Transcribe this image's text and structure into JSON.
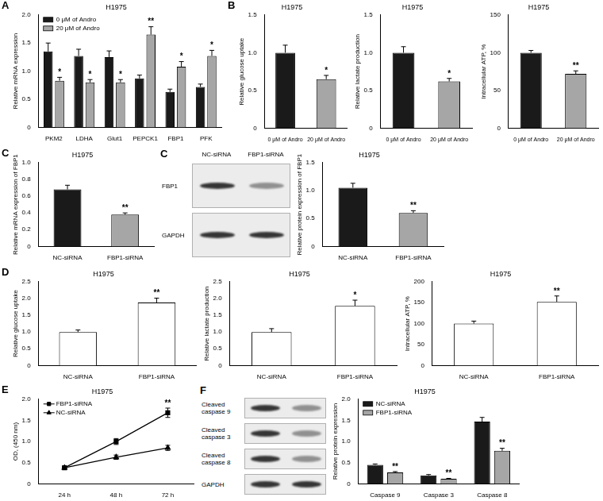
{
  "chart_data": [
    {
      "panel": "A",
      "type": "bar",
      "title": "H1975",
      "y_label": "Relative mRNA expression",
      "categories": [
        "PKM2",
        "LDHA",
        "Glut1",
        "PEPCK1",
        "FBP1",
        "PFK"
      ],
      "series": [
        {
          "name": "0 μM of Andro",
          "color": "#1a1a1a",
          "values": [
            1.35,
            1.27,
            1.25,
            0.87,
            0.63,
            0.72
          ],
          "errors": [
            0.15,
            0.12,
            0.11,
            0.06,
            0.05,
            0.05
          ]
        },
        {
          "name": "20 μM of Andro",
          "color": "#a6a6a6",
          "values": [
            0.83,
            0.8,
            0.8,
            1.65,
            1.08,
            1.27
          ],
          "errors": [
            0.06,
            0.05,
            0.05,
            0.14,
            0.09,
            0.1
          ],
          "significance": [
            "*",
            "*",
            "*",
            "**",
            "*",
            "*"
          ]
        }
      ],
      "ylim": [
        0,
        2
      ],
      "yticks": [
        0,
        0.5,
        {
          "value": 1,
          "label": "1.0"
        },
        1.5,
        {
          "value": 2,
          "label": "2.0"
        }
      ],
      "grid": false,
      "legend": "upper left"
    },
    {
      "panel": "B",
      "type": "bar",
      "title": "H1975",
      "y_label": "Relative glucose uptake",
      "categories": [
        "0 μM of Andro",
        "20 μM of Andro"
      ],
      "values": [
        1.0,
        0.65
      ],
      "errors": [
        0.1,
        0.05
      ],
      "significance": [
        null,
        "*"
      ],
      "colors": [
        "#1a1a1a",
        "#a6a6a6"
      ],
      "ylim": [
        0,
        1.5
      ],
      "yticks": [
        0,
        0.5,
        {
          "value": 1,
          "label": "1.0"
        },
        1.5
      ],
      "grid": false
    },
    {
      "type": "bar",
      "title": "H1975",
      "y_label": "Relative lactate production",
      "categories": [
        "0 μM of Andro",
        "20 μM of Andro"
      ],
      "values": [
        1.0,
        0.62
      ],
      "errors": [
        0.08,
        0.04
      ],
      "significance": [
        null,
        "*"
      ],
      "colors": [
        "#1a1a1a",
        "#a6a6a6"
      ],
      "ylim": [
        0,
        1.5
      ],
      "yticks": [
        0,
        0.5,
        {
          "value": 1,
          "label": "1.0"
        },
        1.5
      ],
      "grid": false
    },
    {
      "type": "bar",
      "title": "H1975",
      "y_label": "Intracellular ATP, %",
      "categories": [
        "0 μM of Andro",
        "20 μM of Andro"
      ],
      "values": [
        100,
        72
      ],
      "errors": [
        3,
        4
      ],
      "significance": [
        null,
        "**"
      ],
      "colors": [
        "#1a1a1a",
        "#a6a6a6"
      ],
      "ylim": [
        0,
        150
      ],
      "yticks": [
        0,
        50,
        100,
        150
      ],
      "grid": false
    },
    {
      "panel": "C",
      "type": "bar",
      "title": "H1975",
      "y_label": "Relative mRNA expression of FBP1",
      "categories": [
        "NC-siRNA",
        "FBP1-siRNA"
      ],
      "values": [
        0.68,
        0.38
      ],
      "errors": [
        0.05,
        0.02
      ],
      "significance": [
        null,
        "**"
      ],
      "colors": [
        "#1a1a1a",
        "#a6a6a6"
      ],
      "ylim": [
        0,
        1
      ],
      "yticks": [
        0,
        0.2,
        0.4,
        0.6,
        0.8,
        {
          "value": 1,
          "label": "1.0"
        }
      ],
      "grid": false
    },
    {
      "type": "bar",
      "title": "H1975",
      "y_label": "Relative protein expression of FBP1",
      "categories": [
        "NC-siRNA",
        "FBP1-siRNA"
      ],
      "values": [
        1.05,
        0.6
      ],
      "errors": [
        0.08,
        0.04
      ],
      "significance": [
        null,
        "**"
      ],
      "colors": [
        "#1a1a1a",
        "#a6a6a6"
      ],
      "ylim": [
        0,
        1.5
      ],
      "yticks": [
        0,
        0.5,
        {
          "value": 1,
          "label": "1.0"
        },
        1.5
      ],
      "grid": false
    },
    {
      "panel": "D",
      "type": "bar",
      "title": "H1975",
      "y_label": "Relative glucose uptake",
      "categories": [
        "NC-siRNA",
        "FBP1-siRNA"
      ],
      "values": [
        1.0,
        1.88
      ],
      "errors": [
        0.06,
        0.13
      ],
      "significance": [
        null,
        "**"
      ],
      "colors": [
        "#ffffff",
        "#ffffff"
      ],
      "ylim": [
        0,
        2.5
      ],
      "yticks": [
        0,
        0.5,
        {
          "value": 1,
          "label": "1.0"
        },
        1.5,
        {
          "value": 2,
          "label": "2.0"
        },
        2.5
      ],
      "grid": false
    },
    {
      "type": "bar",
      "title": "H1975",
      "y_label": "Relative lactate production",
      "categories": [
        "NC-siRNA",
        "FBP1-siRNA"
      ],
      "values": [
        1.0,
        1.78
      ],
      "errors": [
        0.1,
        0.17
      ],
      "significance": [
        null,
        "*"
      ],
      "colors": [
        "#ffffff",
        "#ffffff"
      ],
      "ylim": [
        0,
        2.5
      ],
      "yticks": [
        0,
        0.5,
        {
          "value": 1,
          "label": "1.0"
        },
        1.5,
        {
          "value": 2,
          "label": "2.0"
        },
        2.5
      ],
      "grid": false
    },
    {
      "type": "bar",
      "title": "H1975",
      "y_label": "Intracellular ATP, %",
      "categories": [
        "NC-siRNA",
        "FBP1-siRNA"
      ],
      "values": [
        100,
        152
      ],
      "errors": [
        6,
        14
      ],
      "significance": [
        null,
        "**"
      ],
      "colors": [
        "#ffffff",
        "#ffffff"
      ],
      "ylim": [
        0,
        200
      ],
      "yticks": [
        0,
        50,
        100,
        150,
        200
      ],
      "grid": false
    },
    {
      "panel": "E",
      "type": "line",
      "title": "H1975",
      "y_label": "OD, (450 nm)",
      "categories": [
        "24 h",
        "48 h",
        "72 h"
      ],
      "series": [
        {
          "name": "FBP1-siRNA",
          "color": "#000000",
          "marker": "square",
          "line_style": "solid",
          "values": [
            0.38,
            1.0,
            1.68
          ],
          "errors": [
            0.02,
            0.07,
            0.11
          ],
          "significance": [
            null,
            null,
            "**"
          ]
        },
        {
          "name": "NC-siRNA",
          "color": "#000000",
          "marker": "triangle",
          "line_style": "solid",
          "values": [
            0.38,
            0.63,
            0.85
          ],
          "errors": [
            0.02,
            0.05,
            0.06
          ]
        }
      ],
      "ylim": [
        0,
        2
      ],
      "yticks": [
        0,
        0.5,
        {
          "value": 1,
          "label": "1.0"
        },
        1.5,
        {
          "value": 2,
          "label": "2.0"
        }
      ],
      "grid": false,
      "legend": "upper left"
    },
    {
      "type": "bar",
      "title": "H1975",
      "y_label": "Relative protein expression",
      "categories": [
        "Caspase 9",
        "Caspase 3",
        "Caspase 8"
      ],
      "series": [
        {
          "name": "NC-siRNA",
          "color": "#1a1a1a",
          "values": [
            0.45,
            0.2,
            1.47
          ],
          "errors": [
            0.02,
            0.02,
            0.1
          ]
        },
        {
          "name": "FBP1-siRNA",
          "color": "#a6a6a6",
          "values": [
            0.27,
            0.12,
            0.78
          ],
          "errors": [
            0.02,
            0.01,
            0.06
          ],
          "significance": [
            "**",
            "**",
            "**"
          ]
        }
      ],
      "ylim": [
        0,
        2
      ],
      "yticks": [
        0,
        0.5,
        {
          "value": 1,
          "label": "1.0"
        },
        1.5,
        {
          "value": 2,
          "label": "2.0"
        }
      ],
      "grid": false,
      "legend": "upper left"
    }
  ],
  "blots": [
    {
      "panel": "C",
      "lanes": [
        "NC-siRNA",
        "FBP1-siRNA"
      ],
      "rows": [
        "FBP1",
        "GAPDH"
      ]
    },
    {
      "panel": "F",
      "rows": [
        "Cleaved caspase 9",
        "Cleaved caspase 3",
        "Cleaved caspase 8",
        "GAPDH"
      ]
    }
  ]
}
